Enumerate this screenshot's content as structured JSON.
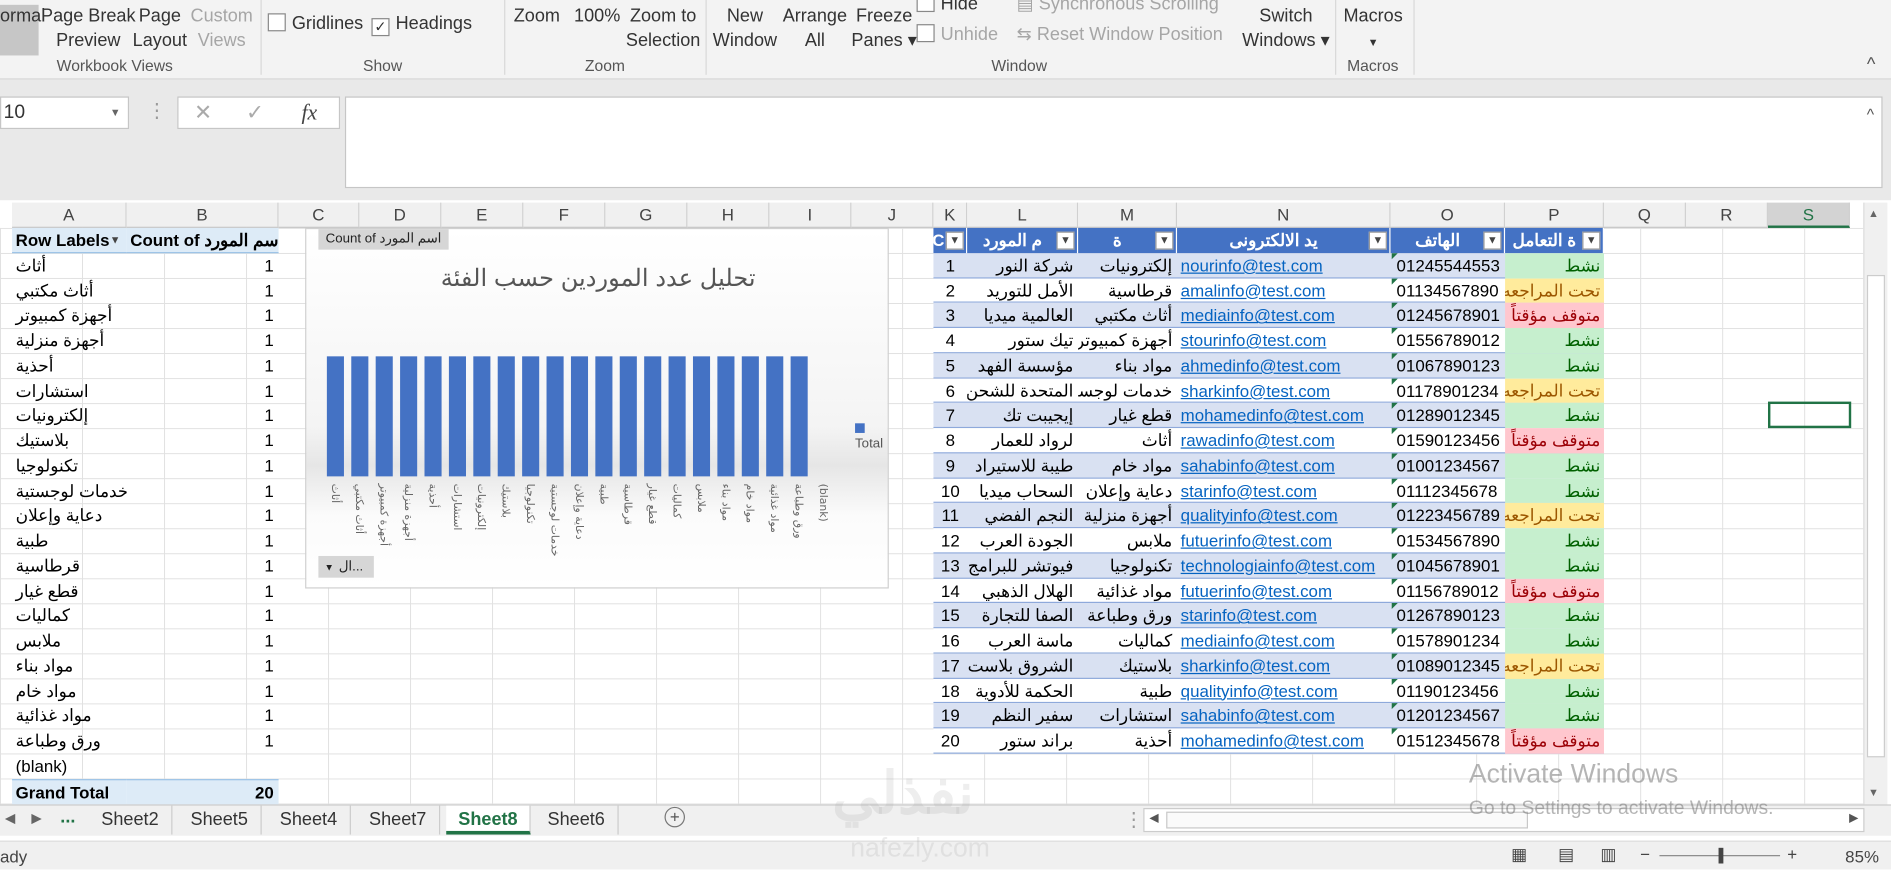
{
  "ribbon": {
    "workbook_views": {
      "normal": "ormal",
      "page_break": [
        "Page Break",
        "Preview"
      ],
      "page_layout": [
        "Page",
        "Layout"
      ],
      "custom_views": [
        "Custom",
        "Views"
      ],
      "label": "Workbook Views"
    },
    "show": {
      "gridlines": "Gridlines",
      "gridlines_checked": false,
      "headings": "Headings",
      "headings_checked": true,
      "label": "Show"
    },
    "zoom": {
      "zoom": "Zoom",
      "hundred": "100%",
      "zoom_sel": [
        "Zoom to",
        "Selection"
      ],
      "label": "Zoom"
    },
    "window": {
      "new_window": [
        "New",
        "Window"
      ],
      "arrange_all": [
        "Arrange",
        "All"
      ],
      "freeze": [
        "Freeze",
        "Panes"
      ],
      "hide": "Hide",
      "unhide": "Unhide",
      "sync": "Synchronous Scrolling",
      "reset": "Reset Window Position",
      "switch": [
        "Switch",
        "Windows"
      ],
      "label": "Window"
    },
    "macros": {
      "macros": "Macros",
      "label": "Macros"
    }
  },
  "name_box": "10",
  "fx": "fx",
  "columns": [
    "A",
    "B",
    "C",
    "D",
    "E",
    "F",
    "G",
    "H",
    "I",
    "J",
    "K",
    "L",
    "M",
    "N",
    "O",
    "P",
    "Q",
    "R",
    "S"
  ],
  "pivot": {
    "header": [
      "Row Labels",
      "Count of اسم المورد"
    ],
    "rows": [
      [
        "أثاث",
        "1"
      ],
      [
        "أثاث مكتبي",
        "1"
      ],
      [
        "أجهزة كمبيوتر",
        "1"
      ],
      [
        "أجهزة منزلية",
        "1"
      ],
      [
        "أحذية",
        "1"
      ],
      [
        "استشارات",
        "1"
      ],
      [
        "إلكترونيات",
        "1"
      ],
      [
        "بلاستيك",
        "1"
      ],
      [
        "تكنولوجيا",
        "1"
      ],
      [
        "خدمات لوجستية",
        "1"
      ],
      [
        "دعاية وإعلان",
        "1"
      ],
      [
        "طبية",
        "1"
      ],
      [
        "قرطاسية",
        "1"
      ],
      [
        "قطع غيار",
        "1"
      ],
      [
        "كماليات",
        "1"
      ],
      [
        "ملابس",
        "1"
      ],
      [
        "مواد بناء",
        "1"
      ],
      [
        "مواد خام",
        "1"
      ],
      [
        "مواد غذائية",
        "1"
      ],
      [
        "ورق وطباعة",
        "1"
      ],
      [
        "(blank)",
        ""
      ]
    ],
    "grand_total": [
      "Grand Total",
      "20"
    ]
  },
  "chart_data": {
    "type": "bar",
    "title": "تحليل عدد الموردين حسب الفئة",
    "field_button": "Count of اسم المورد",
    "axis_button": "ال...",
    "categories": [
      "أثاث",
      "أثاث مكتبي",
      "أجهزة كمبيوتر",
      "أجهزة منزلية",
      "أحذية",
      "استشارات",
      "إلكترونيات",
      "بلاستيك",
      "تكنولوجيا",
      "خدمات لوجستية",
      "دعاية وإعلان",
      "طبية",
      "قرطاسية",
      "قطع غيار",
      "كماليات",
      "ملابس",
      "مواد بناء",
      "مواد خام",
      "مواد غذائية",
      "ورق وطباعة",
      "(blank)"
    ],
    "series": [
      {
        "name": "Total",
        "values": [
          1,
          1,
          1,
          1,
          1,
          1,
          1,
          1,
          1,
          1,
          1,
          1,
          1,
          1,
          1,
          1,
          1,
          1,
          1,
          1,
          null
        ],
        "color": "#4472c4"
      }
    ],
    "legend": "right"
  },
  "table": {
    "headers": [
      "C",
      "م المورد",
      "ة",
      "يد الالكترونى",
      "الهاتف",
      "ة التعامل"
    ],
    "rows": [
      [
        "1",
        "شركة النور",
        "إلكترونيات",
        "nourinfo@test.com",
        "01245544553",
        "نشط"
      ],
      [
        "2",
        "الأمل للتوريد",
        "قرطاسية",
        "amalinfo@test.com",
        "01134567890",
        "تحت المراجعه"
      ],
      [
        "3",
        "العالمية ميديا",
        "أثاث مكتبي",
        "mediainfo@test.com",
        "01245678901",
        "متوقف مؤقتاً"
      ],
      [
        "4",
        "تيك ستور",
        "أجهزة كمبيوتر",
        "stourinfo@test.com",
        "01556789012",
        "نشط"
      ],
      [
        "5",
        "مؤسسة الفهد",
        "مواد بناء",
        "ahmedinfo@test.com",
        "01067890123",
        "نشط"
      ],
      [
        "6",
        "المتحدة للشحن",
        "خدمات لوجستية",
        "sharkinfo@test.com",
        "01178901234",
        "تحت المراجعه"
      ],
      [
        "7",
        "إيجيبت تك",
        "قطع غيار",
        "mohamedinfo@test.com",
        "01289012345",
        "نشط"
      ],
      [
        "8",
        "لرواد للعمار",
        "أثاث",
        "rawadinfo@test.com",
        "01590123456",
        "متوقف مؤقتاً"
      ],
      [
        "9",
        "طيبة للاستيراد",
        "مواد خام",
        "sahabinfo@test.com",
        "01001234567",
        "نشط"
      ],
      [
        "10",
        "السحاب ميديا",
        "دعاية وإعلان",
        "starinfo@test.com",
        "01112345678",
        "نشط"
      ],
      [
        "11",
        "النجم الفضي",
        "أجهزة منزلية",
        "qualityinfo@test.com",
        "01223456789",
        "تحت المراجعه"
      ],
      [
        "12",
        "الجودة العرب",
        "ملابس",
        "futuerinfo@test.com",
        "01534567890",
        "نشط"
      ],
      [
        "13",
        "فيوتشر للبرامج",
        "تكنولوجيا",
        "technologiainfo@test.com",
        "01045678901",
        "نشط"
      ],
      [
        "14",
        "الهلال الذهبي",
        "مواد غذائية",
        "futuerinfo@test.com",
        "01156789012",
        "متوقف مؤقتاً"
      ],
      [
        "15",
        "الصفا للتجارة",
        "ورق وطباعة",
        "starinfo@test.com",
        "01267890123",
        "نشط"
      ],
      [
        "16",
        "ماسة العرب",
        "كماليات",
        "mediainfo@test.com",
        "01578901234",
        "نشط"
      ],
      [
        "17",
        "الشروق بلاست",
        "بلاستيك",
        "sharkinfo@test.com",
        "01089012345",
        "تحت المراجعه"
      ],
      [
        "18",
        "الحكمة للأدوية",
        "طبية",
        "qualityinfo@test.com",
        "01190123456",
        "نشط"
      ],
      [
        "19",
        "سفير النظم",
        "استشارات",
        "sahabinfo@test.com",
        "01201234567",
        "نشط"
      ],
      [
        "20",
        "براند ستور",
        "أحذية",
        "mohamedinfo@test.com",
        "01512345678",
        "متوقف مؤقتاً"
      ]
    ],
    "status_colors": {
      "نشط": [
        "#c6efce",
        "#006100"
      ],
      "تحت المراجعه": [
        "#ffeb9c",
        "#9c5700"
      ],
      "متوقف مؤقتاً": [
        "#ffc7ce",
        "#9c0006"
      ]
    }
  },
  "sheets": {
    "more": "...",
    "tabs": [
      "Sheet2",
      "Sheet5",
      "Sheet4",
      "Sheet7",
      "Sheet8",
      "Sheet6"
    ],
    "active": "Sheet8"
  },
  "status": {
    "ready": "ady",
    "zoom": "85%"
  },
  "watermark": {
    "activate": "Activate Windows",
    "goto": "Go to Settings to activate Windows.",
    "logo": "نفذلي",
    "logo_url": "nafezly.com"
  }
}
